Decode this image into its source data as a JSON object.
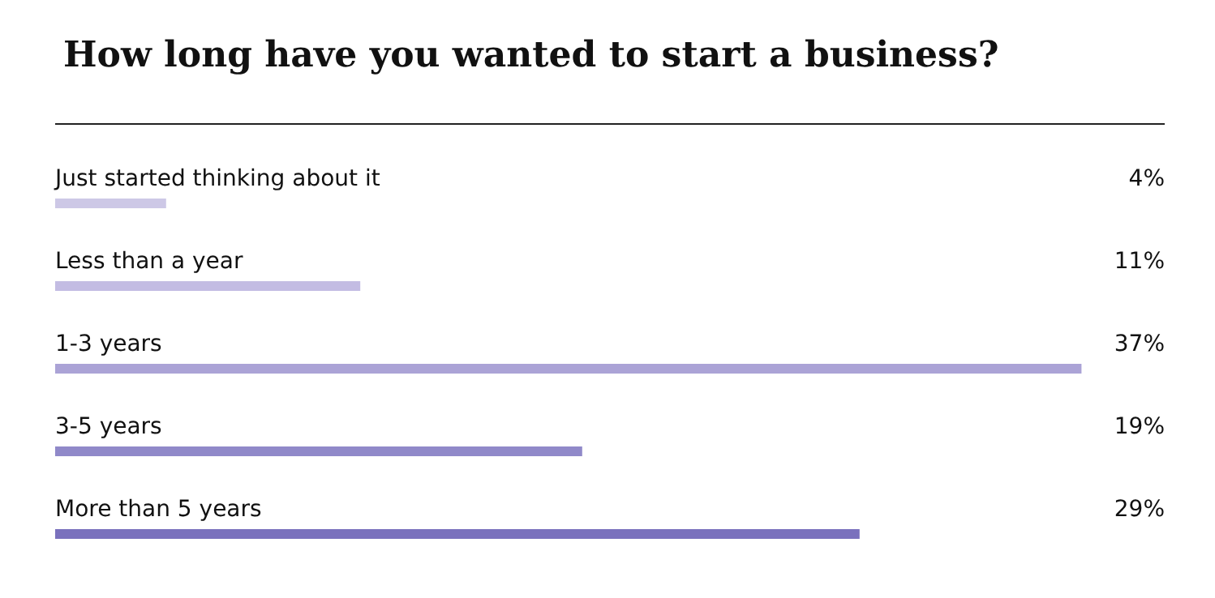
{
  "chart_data": {
    "type": "bar",
    "orientation": "horizontal",
    "title": "How long have you wanted to start a business?",
    "categories": [
      "Just started thinking about it",
      "Less than a year",
      "1-3 years",
      "3-5 years",
      "More than 5 years"
    ],
    "values": [
      4,
      11,
      37,
      19,
      29
    ],
    "colors": [
      "#cdc8e6",
      "#c3bce3",
      "#aba3d6",
      "#9089c9",
      "#7a71bd"
    ],
    "value_labels": [
      "4%",
      "11%",
      "37%",
      "19%",
      "29%"
    ]
  }
}
